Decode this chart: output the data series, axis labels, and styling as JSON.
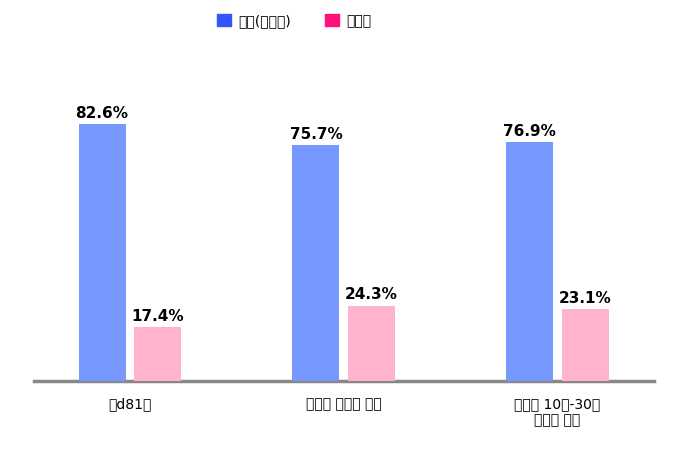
{
  "categories": [
    "\bd81구",
    "광역시 자치구 평균",
    "광역시 10만-30만\n자치구 평균"
  ],
  "series": [
    {
      "name": "총원(정원인)",
      "values": [
        82.6,
        75.7,
        76.9
      ],
      "color": "#7799FF"
    },
    {
      "name": "음면동",
      "values": [
        17.4,
        24.3,
        23.1
      ],
      "color": "#FFB3CC"
    }
  ],
  "legend_colors": [
    "#3355FF",
    "#FF1177"
  ],
  "bar_width": 0.22,
  "ylim": [
    0,
    100
  ],
  "background_color": "#FFFFFF",
  "spine_color": "#888888",
  "tick_fontsize": 10,
  "legend_fontsize": 10,
  "value_label_fontsize": 11
}
